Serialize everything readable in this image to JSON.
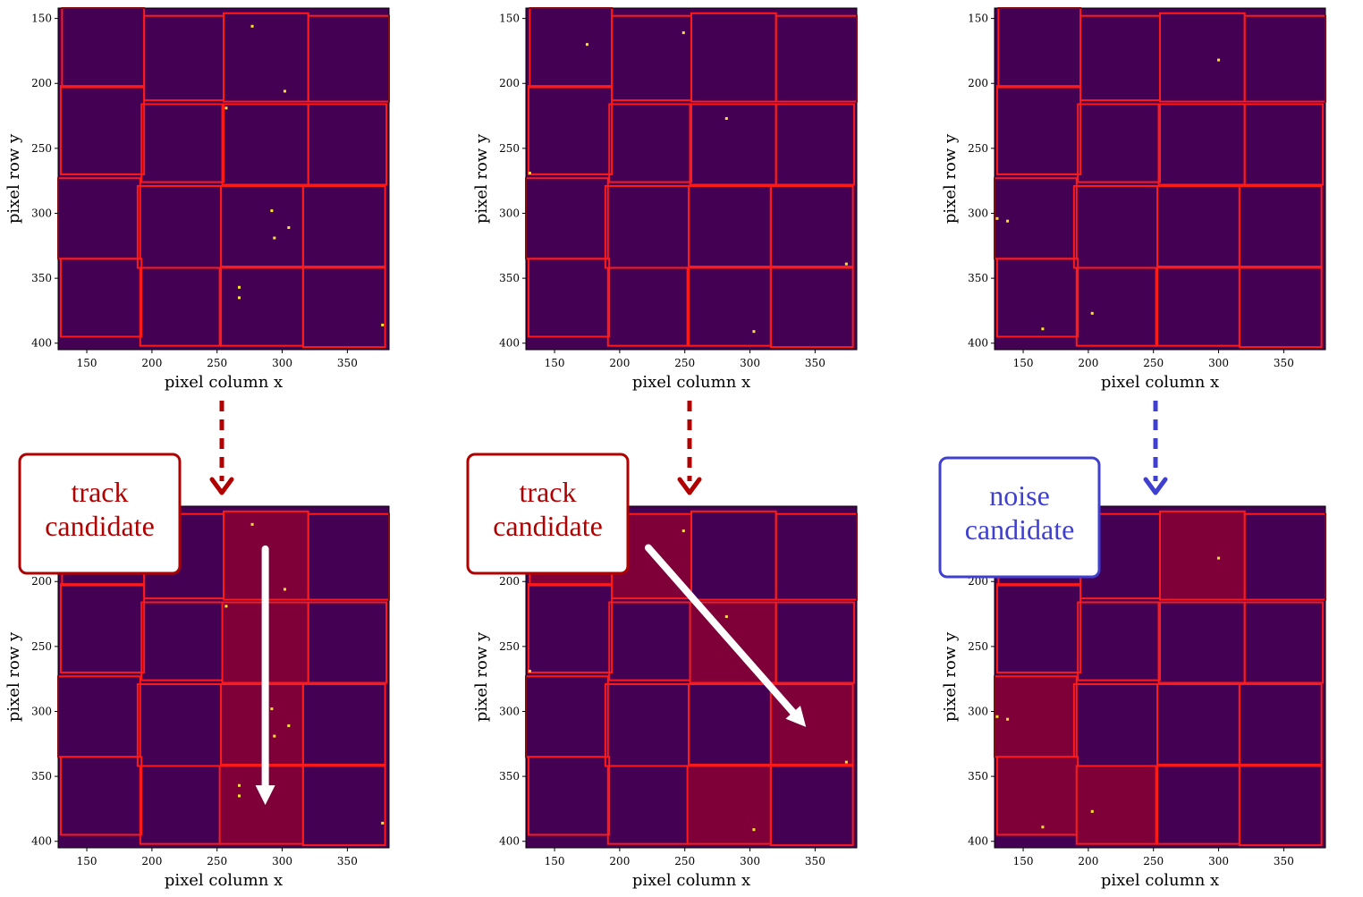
{
  "colors": {
    "plot_bg": "#440154",
    "hit": "#fde725",
    "box_edge": "#ff1a1a",
    "box_highlight": "#7f0038",
    "track_color": "#b00000",
    "noise_color": "#4040d0",
    "arrow_white": "#ffffff"
  },
  "axes": {
    "xlabel": "pixel column x",
    "ylabel": "pixel row y",
    "xlim": [
      128,
      382
    ],
    "ylim": [
      405,
      142
    ],
    "xticks": [
      150,
      200,
      250,
      300,
      350
    ],
    "yticks": [
      150,
      200,
      250,
      300,
      350,
      400
    ]
  },
  "callouts": [
    {
      "line1": "track",
      "line2": "candidate",
      "kind": "track"
    },
    {
      "line1": "track",
      "line2": "candidate",
      "kind": "track"
    },
    {
      "line1": "noise",
      "line2": "candidate",
      "kind": "noise"
    }
  ],
  "chart_data": [
    {
      "type": "scatter",
      "panel": "top-left",
      "xlabel": "pixel column x",
      "ylabel": "pixel row y",
      "xlim": [
        128,
        382
      ],
      "ylim": [
        405,
        142
      ],
      "points": [
        [
          277,
          156
        ],
        [
          302,
          206
        ],
        [
          257,
          219
        ],
        [
          292,
          298
        ],
        [
          305,
          311
        ],
        [
          294,
          319
        ],
        [
          267,
          357
        ],
        [
          267,
          365
        ],
        [
          377,
          386
        ]
      ],
      "boxes": [
        [
          131,
          142,
          194,
          203
        ],
        [
          194,
          148,
          255,
          213
        ],
        [
          255,
          146,
          320,
          214
        ],
        [
          320,
          148,
          382,
          214
        ],
        [
          130,
          202,
          194,
          270
        ],
        [
          192,
          216,
          255,
          276
        ],
        [
          254,
          216,
          320,
          278
        ],
        [
          320,
          216,
          380,
          278
        ],
        [
          128,
          273,
          191,
          335
        ],
        [
          189,
          279,
          253,
          342
        ],
        [
          253,
          279,
          316,
          341
        ],
        [
          316,
          279,
          379,
          342
        ],
        [
          130,
          335,
          192,
          395
        ],
        [
          191,
          342,
          253,
          402
        ],
        [
          252,
          342,
          316,
          402
        ],
        [
          316,
          341,
          379,
          403
        ]
      ],
      "highlight": []
    },
    {
      "type": "scatter",
      "panel": "top-center",
      "xlabel": "pixel column x",
      "ylabel": "pixel row y",
      "xlim": [
        128,
        382
      ],
      "ylim": [
        405,
        142
      ],
      "points": [
        [
          175,
          170
        ],
        [
          249,
          161
        ],
        [
          282,
          227
        ],
        [
          131,
          269
        ],
        [
          374,
          339
        ],
        [
          303,
          391
        ]
      ],
      "boxes": [
        [
          131,
          142,
          194,
          203
        ],
        [
          194,
          148,
          255,
          213
        ],
        [
          255,
          146,
          320,
          214
        ],
        [
          320,
          148,
          382,
          214
        ],
        [
          130,
          202,
          194,
          270
        ],
        [
          192,
          216,
          255,
          276
        ],
        [
          254,
          216,
          320,
          278
        ],
        [
          320,
          216,
          380,
          278
        ],
        [
          128,
          273,
          191,
          335
        ],
        [
          189,
          279,
          253,
          342
        ],
        [
          253,
          279,
          316,
          341
        ],
        [
          316,
          279,
          379,
          342
        ],
        [
          130,
          335,
          192,
          395
        ],
        [
          191,
          342,
          253,
          402
        ],
        [
          252,
          342,
          316,
          402
        ],
        [
          316,
          341,
          379,
          403
        ]
      ],
      "highlight": []
    },
    {
      "type": "scatter",
      "panel": "top-right",
      "xlabel": "pixel column x",
      "ylabel": "pixel row y",
      "xlim": [
        128,
        382
      ],
      "ylim": [
        405,
        142
      ],
      "points": [
        [
          300,
          182
        ],
        [
          130,
          304
        ],
        [
          138,
          306
        ],
        [
          203,
          377
        ],
        [
          165,
          389
        ]
      ],
      "boxes": [
        [
          131,
          142,
          194,
          203
        ],
        [
          194,
          148,
          255,
          213
        ],
        [
          255,
          146,
          320,
          214
        ],
        [
          320,
          148,
          382,
          214
        ],
        [
          130,
          202,
          194,
          270
        ],
        [
          192,
          216,
          255,
          276
        ],
        [
          254,
          216,
          320,
          278
        ],
        [
          320,
          216,
          380,
          278
        ],
        [
          128,
          273,
          191,
          335
        ],
        [
          189,
          279,
          253,
          342
        ],
        [
          253,
          279,
          316,
          341
        ],
        [
          316,
          279,
          379,
          342
        ],
        [
          130,
          335,
          192,
          395
        ],
        [
          191,
          342,
          253,
          402
        ],
        [
          252,
          342,
          316,
          402
        ],
        [
          316,
          341,
          379,
          403
        ]
      ],
      "highlight": []
    },
    {
      "type": "scatter",
      "panel": "bottom-left",
      "xlabel": "pixel column x",
      "ylabel": "pixel row y",
      "xlim": [
        128,
        382
      ],
      "ylim": [
        405,
        142
      ],
      "points": [
        [
          277,
          156
        ],
        [
          302,
          206
        ],
        [
          257,
          219
        ],
        [
          292,
          298
        ],
        [
          305,
          311
        ],
        [
          294,
          319
        ],
        [
          267,
          357
        ],
        [
          267,
          365
        ],
        [
          377,
          386
        ]
      ],
      "boxes": [
        [
          131,
          142,
          194,
          203
        ],
        [
          194,
          148,
          255,
          213
        ],
        [
          255,
          146,
          320,
          214
        ],
        [
          320,
          148,
          382,
          214
        ],
        [
          130,
          202,
          194,
          270
        ],
        [
          192,
          216,
          255,
          276
        ],
        [
          254,
          216,
          320,
          278
        ],
        [
          320,
          216,
          380,
          278
        ],
        [
          128,
          273,
          191,
          335
        ],
        [
          189,
          279,
          253,
          342
        ],
        [
          253,
          279,
          316,
          341
        ],
        [
          316,
          279,
          379,
          342
        ],
        [
          130,
          335,
          192,
          395
        ],
        [
          191,
          342,
          253,
          402
        ],
        [
          252,
          342,
          316,
          402
        ],
        [
          316,
          341,
          379,
          403
        ]
      ],
      "highlight": [
        2,
        6,
        10,
        14
      ],
      "arrow": {
        "from": [
          287,
          175
        ],
        "to": [
          287,
          372
        ]
      }
    },
    {
      "type": "scatter",
      "panel": "bottom-center",
      "xlabel": "pixel column x",
      "ylabel": "pixel row y",
      "xlim": [
        128,
        382
      ],
      "ylim": [
        405,
        142
      ],
      "points": [
        [
          175,
          170
        ],
        [
          249,
          161
        ],
        [
          282,
          227
        ],
        [
          131,
          269
        ],
        [
          374,
          339
        ],
        [
          303,
          391
        ]
      ],
      "boxes": [
        [
          131,
          142,
          194,
          203
        ],
        [
          194,
          148,
          255,
          213
        ],
        [
          255,
          146,
          320,
          214
        ],
        [
          320,
          148,
          382,
          214
        ],
        [
          130,
          202,
          194,
          270
        ],
        [
          192,
          216,
          255,
          276
        ],
        [
          254,
          216,
          320,
          278
        ],
        [
          320,
          216,
          380,
          278
        ],
        [
          128,
          273,
          191,
          335
        ],
        [
          189,
          279,
          253,
          342
        ],
        [
          253,
          279,
          316,
          341
        ],
        [
          316,
          279,
          379,
          342
        ],
        [
          130,
          335,
          192,
          395
        ],
        [
          191,
          342,
          253,
          402
        ],
        [
          252,
          342,
          316,
          402
        ],
        [
          316,
          341,
          379,
          403
        ]
      ],
      "highlight": [
        0,
        1,
        6,
        11,
        14
      ],
      "arrow": {
        "from": [
          222,
          174
        ],
        "to": [
          343,
          312
        ]
      }
    },
    {
      "type": "scatter",
      "panel": "bottom-right",
      "xlabel": "pixel column x",
      "ylabel": "pixel row y",
      "xlim": [
        128,
        382
      ],
      "ylim": [
        405,
        142
      ],
      "points": [
        [
          300,
          182
        ],
        [
          130,
          304
        ],
        [
          138,
          306
        ],
        [
          203,
          377
        ],
        [
          165,
          389
        ]
      ],
      "boxes": [
        [
          131,
          142,
          194,
          203
        ],
        [
          194,
          148,
          255,
          213
        ],
        [
          255,
          146,
          320,
          214
        ],
        [
          320,
          148,
          382,
          214
        ],
        [
          130,
          202,
          194,
          270
        ],
        [
          192,
          216,
          255,
          276
        ],
        [
          254,
          216,
          320,
          278
        ],
        [
          320,
          216,
          380,
          278
        ],
        [
          128,
          273,
          191,
          335
        ],
        [
          189,
          279,
          253,
          342
        ],
        [
          253,
          279,
          316,
          341
        ],
        [
          316,
          279,
          379,
          342
        ],
        [
          130,
          335,
          192,
          395
        ],
        [
          191,
          342,
          253,
          402
        ],
        [
          252,
          342,
          316,
          402
        ],
        [
          316,
          341,
          379,
          403
        ]
      ],
      "highlight": [
        2,
        8,
        12,
        13
      ]
    }
  ]
}
